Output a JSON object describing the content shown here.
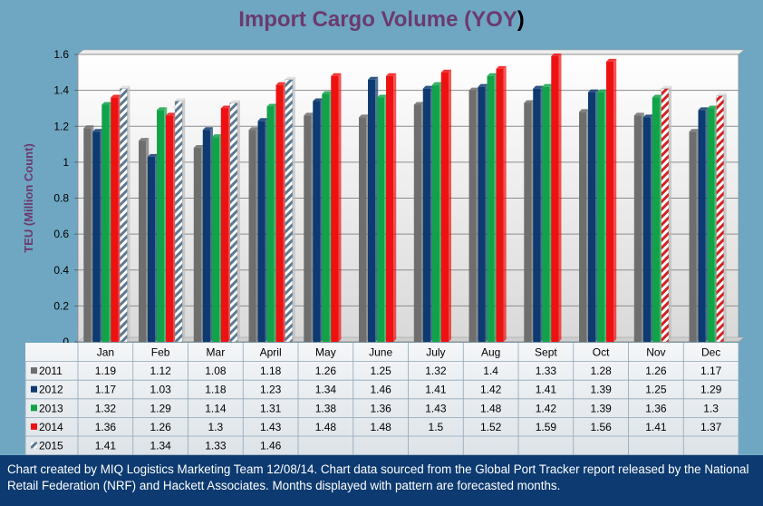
{
  "title_main": "Import Cargo Volume (YOY",
  "title_paren": ")",
  "footer": "Chart created by MIQ Logistics Marketing Team 12/08/14. Chart data sourced from the Global Port Tracker report released by the National Retail Federation (NRF) and Hackett Associates. Months displayed with pattern are forecasted months.",
  "chart_data": {
    "type": "bar",
    "ylabel": "TEU (Million Count)",
    "ylim": [
      0,
      1.6
    ],
    "yticks": [
      "0",
      "0.2",
      "0.4",
      "0.6",
      "0.8",
      "1",
      "1.2",
      "1.4",
      "1.6"
    ],
    "grid": true,
    "legend": "data-table",
    "categories": [
      "Jan",
      "Feb",
      "Mar",
      "April",
      "May",
      "June",
      "July",
      "Aug",
      "Sept",
      "Oct",
      "Nov",
      "Dec"
    ],
    "series": [
      {
        "name": "2011",
        "color": "#6e6e6e",
        "values": [
          1.19,
          1.12,
          1.08,
          1.18,
          1.26,
          1.25,
          1.32,
          1.4,
          1.33,
          1.28,
          1.26,
          1.17
        ],
        "labels": [
          "1.19",
          "1.12",
          "1.08",
          "1.18",
          "1.26",
          "1.25",
          "1.32",
          "1.4",
          "1.33",
          "1.28",
          "1.26",
          "1.17"
        ]
      },
      {
        "name": "2012",
        "color": "#0d3a70",
        "values": [
          1.17,
          1.03,
          1.18,
          1.23,
          1.34,
          1.46,
          1.41,
          1.42,
          1.41,
          1.39,
          1.25,
          1.29
        ],
        "labels": [
          "1.17",
          "1.03",
          "1.18",
          "1.23",
          "1.34",
          "1.46",
          "1.41",
          "1.42",
          "1.41",
          "1.39",
          "1.25",
          "1.29"
        ]
      },
      {
        "name": "2013",
        "color": "#12a34a",
        "values": [
          1.32,
          1.29,
          1.14,
          1.31,
          1.38,
          1.36,
          1.43,
          1.48,
          1.42,
          1.39,
          1.36,
          1.3
        ],
        "labels": [
          "1.32",
          "1.29",
          "1.14",
          "1.31",
          "1.38",
          "1.36",
          "1.43",
          "1.48",
          "1.42",
          "1.39",
          "1.36",
          "1.3"
        ]
      },
      {
        "name": "2014",
        "color": "#ee1111",
        "values": [
          1.36,
          1.26,
          1.3,
          1.43,
          1.48,
          1.48,
          1.5,
          1.52,
          1.59,
          1.56,
          1.41,
          1.37
        ],
        "labels": [
          "1.36",
          "1.26",
          "1.3",
          "1.43",
          "1.48",
          "1.48",
          "1.5",
          "1.52",
          "1.59",
          "1.56",
          "1.41",
          "1.37"
        ],
        "forecast_from_index": 10,
        "forecast_color": "#d62020"
      },
      {
        "name": "2015",
        "color": "#7b93a8",
        "values": [
          1.41,
          1.34,
          1.33,
          1.46,
          null,
          null,
          null,
          null,
          null,
          null,
          null,
          null
        ],
        "labels": [
          "1.41",
          "1.34",
          "1.33",
          "1.46",
          "",
          "",
          "",
          "",
          "",
          "",
          "",
          ""
        ],
        "forecast_from_index": 0,
        "forecast_color": "#5a7a94"
      }
    ]
  }
}
